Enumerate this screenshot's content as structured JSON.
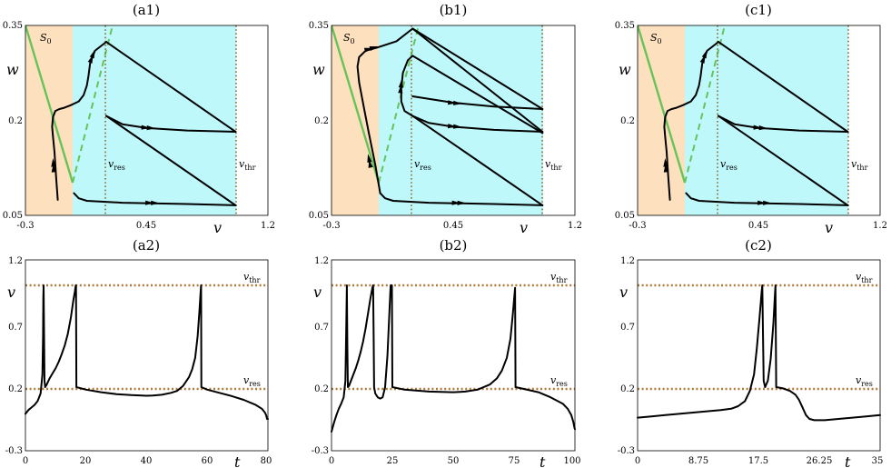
{
  "colors": {
    "left_region": "#fde0bd",
    "right_region": "#bff8fb",
    "nullcline": "#66c35a",
    "threshold_lines": "#b07a3a",
    "trajectory": "#000000"
  },
  "chart_data": [
    {
      "type": "line",
      "title": "(a1)",
      "xlabel": "v",
      "ylabel": "w",
      "xlim": [
        -0.3,
        1.2
      ],
      "ylim": [
        0.05,
        0.35
      ],
      "xticks": [
        "-0.3",
        "0.45",
        "1.2"
      ],
      "yticks": [
        "0.05",
        "0.2",
        "0.35"
      ],
      "nullcline_label": "S",
      "nullcline_label_sub": "0",
      "v_res_label": "v",
      "v_res_sub": "res",
      "v_thr_label": "v",
      "v_thr_sub": "thr",
      "region_boundary_v": 0.0,
      "v_res": 0.2,
      "v_thr": 1.0,
      "paths": [
        [
          [
            -0.1,
            0.0745
          ],
          [
            -0.11,
            0.11
          ],
          [
            -0.12,
            0.15
          ],
          [
            -0.13,
            0.175
          ],
          [
            -0.135,
            0.19
          ],
          [
            -0.13,
            0.205
          ],
          [
            -0.115,
            0.215
          ],
          [
            -0.09,
            0.218
          ],
          [
            -0.06,
            0.22
          ],
          [
            -0.02,
            0.224
          ],
          [
            0.03,
            0.23
          ],
          [
            0.06,
            0.24
          ],
          [
            0.08,
            0.255
          ],
          [
            0.09,
            0.27
          ],
          [
            0.1,
            0.29
          ],
          [
            0.13,
            0.31
          ],
          [
            0.2,
            0.324
          ]
        ],
        [
          [
            0.2,
            0.324
          ],
          [
            1.0,
            0.182
          ]
        ],
        [
          [
            0.2,
            0.207
          ],
          [
            0.3,
            0.194
          ],
          [
            0.45,
            0.188
          ],
          [
            0.7,
            0.184
          ],
          [
            1.0,
            0.182
          ]
        ],
        [
          [
            0.2,
            0.207
          ],
          [
            1.0,
            0.066
          ]
        ],
        [
          [
            0.0,
            0.085
          ],
          [
            0.03,
            0.077
          ],
          [
            0.08,
            0.073
          ],
          [
            0.3,
            0.07
          ],
          [
            0.7,
            0.068
          ],
          [
            1.0,
            0.066
          ]
        ]
      ],
      "arrow_points": [
        [
          0.475,
          0.188
        ],
        [
          0.5,
          0.0695
        ],
        [
          -0.128,
          0.133
        ],
        [
          0.12,
          0.305
        ]
      ]
    },
    {
      "type": "line",
      "title": "(b1)",
      "xlabel": "v",
      "ylabel": "w",
      "xlim": [
        -0.3,
        1.2
      ],
      "ylim": [
        0.05,
        0.35
      ],
      "xticks": [
        "-0.3",
        "0.45",
        "1.2"
      ],
      "yticks": [
        "0.05",
        "0.2",
        "0.35"
      ],
      "nullcline_label": "S",
      "nullcline_label_sub": "0",
      "v_res_label": "v",
      "v_res_sub": "res",
      "v_thr_label": "v",
      "v_thr_sub": "thr",
      "region_boundary_v": 0.0,
      "v_res": 0.2,
      "v_thr": 1.0,
      "paths": [
        [
          [
            0.0,
            0.085
          ],
          [
            -0.03,
            0.13
          ],
          [
            -0.07,
            0.18
          ],
          [
            -0.1,
            0.22
          ],
          [
            -0.13,
            0.26
          ],
          [
            -0.14,
            0.285
          ],
          [
            -0.13,
            0.3
          ],
          [
            -0.09,
            0.31
          ],
          [
            -0.02,
            0.315
          ],
          [
            0.1,
            0.325
          ],
          [
            0.2,
            0.345
          ]
        ],
        [
          [
            0.2,
            0.345
          ],
          [
            1.0,
            0.218
          ]
        ],
        [
          [
            0.2,
            0.345
          ],
          [
            1.0,
            0.182
          ]
        ],
        [
          [
            0.2,
            0.207
          ],
          [
            0.15,
            0.215
          ],
          [
            0.13,
            0.23
          ],
          [
            0.13,
            0.25
          ],
          [
            0.14,
            0.275
          ],
          [
            0.17,
            0.295
          ],
          [
            0.2,
            0.302
          ]
        ],
        [
          [
            0.2,
            0.302
          ],
          [
            1.0,
            0.18
          ]
        ],
        [
          [
            0.2,
            0.207
          ],
          [
            0.3,
            0.196
          ],
          [
            0.45,
            0.19
          ],
          [
            0.7,
            0.185
          ],
          [
            1.0,
            0.182
          ]
        ],
        [
          [
            0.2,
            0.238
          ],
          [
            0.45,
            0.228
          ],
          [
            0.7,
            0.222
          ],
          [
            1.0,
            0.218
          ]
        ],
        [
          [
            0.2,
            0.207
          ],
          [
            1.0,
            0.066
          ]
        ],
        [
          [
            0.0,
            0.085
          ],
          [
            0.03,
            0.077
          ],
          [
            0.08,
            0.073
          ],
          [
            0.3,
            0.07
          ],
          [
            0.7,
            0.068
          ],
          [
            1.0,
            0.066
          ]
        ]
      ],
      "arrow_points": [
        [
          0.475,
          0.19
        ],
        [
          0.475,
          0.227
        ],
        [
          0.5,
          0.0695
        ],
        [
          -0.04,
          0.315
        ],
        [
          0.13,
          0.258
        ],
        [
          -0.07,
          0.14
        ]
      ]
    },
    {
      "type": "line",
      "title": "(c1)",
      "xlabel": "v",
      "ylabel": "w",
      "xlim": [
        -0.3,
        1.2
      ],
      "ylim": [
        0.05,
        0.35
      ],
      "xticks": [
        "-0.3",
        "0.45",
        "1.2"
      ],
      "yticks": [
        "0.05",
        "0.2",
        "0.35"
      ],
      "nullcline_label": "S",
      "nullcline_label_sub": "0",
      "v_res_label": "v",
      "v_res_sub": "res",
      "v_thr_label": "v",
      "v_thr_sub": "thr",
      "region_boundary_v": 0.0,
      "v_res": 0.2,
      "v_thr": 1.0,
      "paths": [
        [
          [
            -0.1,
            0.0745
          ],
          [
            -0.11,
            0.11
          ],
          [
            -0.12,
            0.15
          ],
          [
            -0.13,
            0.175
          ],
          [
            -0.135,
            0.19
          ],
          [
            -0.13,
            0.205
          ],
          [
            -0.115,
            0.215
          ],
          [
            -0.09,
            0.218
          ],
          [
            -0.06,
            0.22
          ],
          [
            -0.02,
            0.224
          ],
          [
            0.03,
            0.23
          ],
          [
            0.06,
            0.24
          ],
          [
            0.08,
            0.255
          ],
          [
            0.09,
            0.27
          ],
          [
            0.1,
            0.29
          ],
          [
            0.13,
            0.31
          ],
          [
            0.2,
            0.324
          ]
        ],
        [
          [
            0.2,
            0.324
          ],
          [
            1.0,
            0.182
          ]
        ],
        [
          [
            0.2,
            0.207
          ],
          [
            0.3,
            0.194
          ],
          [
            0.45,
            0.188
          ],
          [
            0.7,
            0.184
          ],
          [
            1.0,
            0.182
          ]
        ],
        [
          [
            0.2,
            0.207
          ],
          [
            1.0,
            0.066
          ]
        ],
        [
          [
            0.0,
            0.085
          ],
          [
            0.03,
            0.077
          ],
          [
            0.08,
            0.073
          ],
          [
            0.3,
            0.07
          ],
          [
            0.7,
            0.068
          ],
          [
            1.0,
            0.066
          ]
        ]
      ],
      "arrow_points": [
        [
          0.475,
          0.188
        ],
        [
          0.5,
          0.0695
        ],
        [
          -0.128,
          0.133
        ],
        [
          0.12,
          0.305
        ]
      ]
    },
    {
      "type": "line",
      "title": "(a2)",
      "xlabel": "t",
      "ylabel": "v",
      "xlim": [
        0,
        80
      ],
      "ylim": [
        -0.3,
        1.2
      ],
      "xticks": [
        "0",
        "20",
        "40",
        "60",
        "80"
      ],
      "yticks": [
        "-0.3",
        "0.2",
        "0.7",
        "1.2"
      ],
      "v_thr_label": "v",
      "v_thr_sub": "thr",
      "v_res_label": "v",
      "v_res_sub": "res",
      "v_thr": 1.0,
      "v_res": 0.2,
      "series": [
        {
          "x": [
            0,
            1,
            2,
            3,
            4,
            5,
            5.6,
            5.8,
            5.9,
            6.0,
            6.1,
            6.3,
            6.5,
            7,
            8,
            9,
            10,
            11,
            12,
            13,
            14,
            15,
            15.8,
            16.3,
            16.6,
            16.7,
            16.8,
            20,
            25,
            30,
            35,
            40,
            42,
            45,
            48,
            50,
            52,
            54,
            55,
            56,
            56.8,
            57.4,
            57.8,
            57.95,
            58.05,
            60,
            64,
            68,
            72,
            76,
            78,
            79,
            79.4,
            79.7,
            80
          ],
          "y": [
            -0.01,
            0.02,
            0.04,
            0.06,
            0.09,
            0.15,
            0.3,
            0.6,
            0.9,
            1.0,
            0.7,
            0.25,
            0.2,
            0.22,
            0.27,
            0.31,
            0.35,
            0.4,
            0.46,
            0.53,
            0.62,
            0.75,
            0.88,
            0.95,
            1.0,
            1.0,
            0.2,
            0.18,
            0.16,
            0.145,
            0.137,
            0.132,
            0.134,
            0.14,
            0.155,
            0.17,
            0.21,
            0.28,
            0.34,
            0.43,
            0.6,
            0.8,
            0.95,
            1.0,
            0.2,
            0.18,
            0.155,
            0.13,
            0.1,
            0.06,
            0.03,
            0.0,
            -0.02,
            -0.05,
            -0.05
          ]
        }
      ]
    },
    {
      "type": "line",
      "title": "(b2)",
      "xlabel": "t",
      "ylabel": "v",
      "xlim": [
        0,
        100
      ],
      "ylim": [
        -0.3,
        1.2
      ],
      "xticks": [
        "0",
        "25",
        "50",
        "75",
        "100"
      ],
      "yticks": [
        "-0.3",
        "0.2",
        "0.7",
        "1.2"
      ],
      "v_thr_label": "v",
      "v_thr_sub": "thr",
      "v_res_label": "v",
      "v_res_sub": "res",
      "v_thr": 1.0,
      "v_res": 0.2,
      "series": [
        {
          "x": [
            0,
            1,
            2,
            3,
            4,
            5,
            5.7,
            6.1,
            6.3,
            6.5,
            6.7,
            7.2,
            8,
            9,
            10,
            11,
            12,
            13,
            14,
            15,
            16,
            16.8,
            17.1,
            17.3,
            17.5,
            18,
            19,
            20,
            21,
            22,
            23,
            23.8,
            24.3,
            24.6,
            24.8,
            25,
            30,
            40,
            50,
            55,
            60,
            65,
            68,
            70,
            72,
            73.5,
            74.5,
            75.4,
            75.6,
            78,
            85,
            90,
            95,
            97,
            98.5,
            99.3,
            99.8,
            100
          ],
          "y": [
            -0.15,
            -0.08,
            -0.02,
            0.03,
            0.07,
            0.12,
            0.25,
            0.7,
            1.0,
            0.55,
            0.2,
            0.21,
            0.25,
            0.3,
            0.35,
            0.41,
            0.48,
            0.56,
            0.66,
            0.78,
            0.9,
            0.98,
            1.0,
            0.6,
            0.2,
            0.15,
            0.12,
            0.11,
            0.12,
            0.2,
            0.45,
            0.8,
            1.0,
            1.0,
            1.0,
            0.2,
            0.18,
            0.165,
            0.16,
            0.165,
            0.18,
            0.22,
            0.27,
            0.33,
            0.43,
            0.58,
            0.78,
            0.98,
            0.2,
            0.19,
            0.16,
            0.12,
            0.07,
            0.03,
            -0.02,
            -0.07,
            -0.12,
            -0.13
          ]
        }
      ]
    },
    {
      "type": "line",
      "title": "(c2)",
      "xlabel": "t",
      "ylabel": "v",
      "xlim": [
        0,
        35
      ],
      "ylim": [
        -0.3,
        1.2
      ],
      "xticks": [
        "0",
        "8.75",
        "17.5",
        "26.25",
        "35"
      ],
      "yticks": [
        "-0.3",
        "0.2",
        "0.7",
        "1.2"
      ],
      "v_thr_label": "v",
      "v_thr_sub": "thr",
      "v_res_label": "v",
      "v_res_sub": "res",
      "v_thr": 1.0,
      "v_res": 0.2,
      "series": [
        {
          "x": [
            0,
            2,
            4,
            6,
            8,
            10,
            12,
            13.5,
            14.5,
            15.5,
            16.2,
            16.8,
            17.2,
            17.6,
            17.9,
            18.0,
            18.1,
            18.2,
            18.4,
            18.8,
            19.2,
            19.6,
            19.8,
            19.9,
            20.0,
            21,
            22,
            22.8,
            23.3,
            23.8,
            24.3,
            24.8,
            25.5,
            27,
            29,
            31,
            33,
            35
          ],
          "y": [
            -0.04,
            -0.03,
            -0.02,
            -0.01,
            0.0,
            0.01,
            0.02,
            0.03,
            0.05,
            0.09,
            0.17,
            0.3,
            0.5,
            0.75,
            0.95,
            1.0,
            0.6,
            0.25,
            0.2,
            0.25,
            0.42,
            0.7,
            0.9,
            1.0,
            0.2,
            0.19,
            0.17,
            0.14,
            0.1,
            0.04,
            -0.02,
            -0.05,
            -0.06,
            -0.06,
            -0.05,
            -0.04,
            -0.03,
            -0.02
          ]
        }
      ]
    }
  ]
}
